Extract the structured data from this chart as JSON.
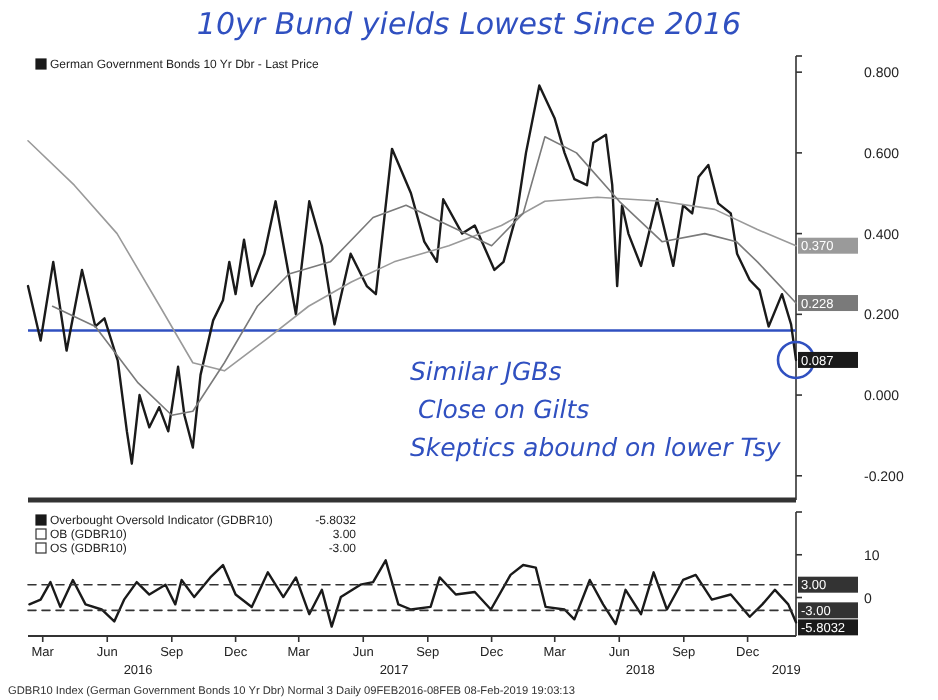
{
  "chart_data": [
    {
      "type": "line",
      "title": "10yr Bund yields Lowest Since 2016",
      "xlim": [
        "2016-02-09",
        "2019-02-08"
      ],
      "ylim": [
        -0.26,
        0.84
      ],
      "yticks": [
        {
          "value": -0.2,
          "label": "-0.200"
        },
        {
          "value": 0,
          "label": "0.000"
        },
        {
          "value": 0.2,
          "label": "0.200"
        },
        {
          "value": 0.4,
          "label": "0.400"
        },
        {
          "value": 0.6,
          "label": "0.600"
        },
        {
          "value": 0.8,
          "label": "0.800"
        }
      ],
      "tick_labels": "y",
      "legend": "top left",
      "series": [
        {
          "name": "German Government Bonds 10 Yr Dbr - Last Price",
          "color": "#1a1a1a",
          "x": [
            "2016-02-09",
            "2016-02-27",
            "2016-03-16",
            "2016-04-04",
            "2016-04-26",
            "2016-05-15",
            "2016-05-28",
            "2016-06-16",
            "2016-06-29",
            "2016-07-06",
            "2016-07-17",
            "2016-07-31",
            "2016-08-14",
            "2016-08-27",
            "2016-09-10",
            "2016-09-19",
            "2016-10-01",
            "2016-10-12",
            "2016-10-30",
            "2016-11-13",
            "2016-11-22",
            "2016-12-01",
            "2016-12-13",
            "2016-12-24",
            "2017-01-11",
            "2017-01-27",
            "2017-02-25",
            "2017-03-16",
            "2017-04-03",
            "2017-04-21",
            "2017-05-14",
            "2017-06-06",
            "2017-06-19",
            "2017-07-12",
            "2017-08-08",
            "2017-08-27",
            "2017-09-14",
            "2017-09-23",
            "2017-10-20",
            "2017-11-07",
            "2017-12-05",
            "2017-12-18",
            "2018-01-06",
            "2018-01-19",
            "2018-02-07",
            "2018-03-01",
            "2018-03-15",
            "2018-03-29",
            "2018-04-16",
            "2018-04-25",
            "2018-05-13",
            "2018-05-22",
            "2018-05-29",
            "2018-06-05",
            "2018-06-14",
            "2018-07-02",
            "2018-07-25",
            "2018-08-17",
            "2018-08-31",
            "2018-09-13",
            "2018-09-22",
            "2018-10-06",
            "2018-10-20",
            "2018-11-07",
            "2018-11-16",
            "2018-12-04",
            "2018-12-18",
            "2018-12-31",
            "2019-01-19",
            "2019-02-01",
            "2019-02-08"
          ],
          "values": [
            0.27,
            0.135,
            0.33,
            0.11,
            0.31,
            0.17,
            0.19,
            0.085,
            -0.09,
            -0.17,
            0.0,
            -0.08,
            -0.03,
            -0.09,
            0.07,
            -0.05,
            -0.13,
            0.05,
            0.185,
            0.235,
            0.33,
            0.25,
            0.385,
            0.27,
            0.35,
            0.48,
            0.2,
            0.48,
            0.37,
            0.175,
            0.35,
            0.27,
            0.25,
            0.61,
            0.5,
            0.38,
            0.33,
            0.485,
            0.4,
            0.42,
            0.31,
            0.33,
            0.45,
            0.6,
            0.767,
            0.685,
            0.6,
            0.535,
            0.52,
            0.625,
            0.645,
            0.52,
            0.27,
            0.47,
            0.4,
            0.32,
            0.485,
            0.32,
            0.47,
            0.45,
            0.54,
            0.57,
            0.475,
            0.45,
            0.35,
            0.285,
            0.26,
            0.17,
            0.25,
            0.175,
            0.087
          ],
          "value_labels": [
            null,
            null,
            null,
            null,
            null,
            null,
            null,
            null,
            null,
            null,
            null,
            null,
            null,
            null,
            null,
            null,
            null,
            null,
            null,
            null,
            null,
            null,
            null,
            null,
            null,
            null,
            null,
            null,
            null,
            null,
            null,
            null,
            null,
            null,
            null,
            null,
            null,
            null,
            null,
            null,
            null,
            null,
            null,
            null,
            null,
            null,
            null,
            null,
            null,
            null,
            null,
            null,
            null,
            null,
            null,
            null,
            null,
            null,
            null,
            null,
            null,
            null,
            null,
            null,
            null,
            null,
            null,
            null,
            null,
            null,
            "0.087"
          ]
        },
        {
          "color": "#9a9a9a",
          "x": [
            "2016-02-09",
            "2016-04-15",
            "2016-06-15",
            "2016-08-15",
            "2016-10-01",
            "2016-11-15",
            "2017-01-15",
            "2017-03-15",
            "2017-05-15",
            "2017-07-15",
            "2017-10-01",
            "2017-12-15",
            "2018-02-15",
            "2018-05-01",
            "2018-08-01",
            "2018-10-15",
            "2018-12-15",
            "2019-02-08"
          ],
          "values": [
            0.63,
            0.52,
            0.4,
            0.22,
            0.08,
            0.06,
            0.14,
            0.22,
            0.28,
            0.33,
            0.37,
            0.42,
            0.48,
            0.49,
            0.48,
            0.46,
            0.41,
            0.37
          ],
          "value_labels": [
            null,
            null,
            null,
            null,
            null,
            null,
            null,
            null,
            null,
            null,
            null,
            null,
            null,
            null,
            null,
            null,
            null,
            "0.370"
          ]
        },
        {
          "color": "#7a7a7a",
          "x": [
            "2016-03-15",
            "2016-05-15",
            "2016-07-15",
            "2016-09-01",
            "2016-10-01",
            "2016-11-15",
            "2017-01-01",
            "2017-02-15",
            "2017-04-15",
            "2017-06-15",
            "2017-08-01",
            "2017-10-01",
            "2017-12-01",
            "2018-01-15",
            "2018-02-15",
            "2018-04-01",
            "2018-06-01",
            "2018-08-01",
            "2018-10-01",
            "2018-11-15",
            "2018-12-15",
            "2019-02-08"
          ],
          "values": [
            0.22,
            0.17,
            0.03,
            -0.05,
            -0.04,
            0.08,
            0.22,
            0.3,
            0.33,
            0.44,
            0.47,
            0.42,
            0.37,
            0.45,
            0.64,
            0.6,
            0.48,
            0.38,
            0.4,
            0.38,
            0.33,
            0.228
          ],
          "value_labels": [
            null,
            null,
            null,
            null,
            null,
            null,
            null,
            null,
            null,
            null,
            null,
            null,
            null,
            null,
            null,
            null,
            null,
            null,
            null,
            null,
            null,
            "0.228"
          ]
        }
      ],
      "ref_lines": [
        {
          "axis": "y",
          "value": 0.16,
          "color": "#3050c0"
        }
      ],
      "annotations": [
        "Similar JGBs",
        "Close on Gilts",
        "Skeptics abound on lower Tsy"
      ]
    },
    {
      "type": "line",
      "xlim": [
        "2016-02-09",
        "2019-02-08"
      ],
      "ylim": [
        -9,
        20
      ],
      "yticks": [
        0,
        10
      ],
      "legend": "top left",
      "xticks": [
        {
          "value": "2016-03-01",
          "label": "Mar"
        },
        {
          "value": "2016-06-01",
          "label": "Jun"
        },
        {
          "value": "2016-09-01",
          "label": "Sep"
        },
        {
          "value": "2016-12-01",
          "label": "Dec"
        },
        {
          "value": "2017-03-01",
          "label": "Mar"
        },
        {
          "value": "2017-06-01",
          "label": "Jun"
        },
        {
          "value": "2017-09-01",
          "label": "Sep"
        },
        {
          "value": "2017-12-01",
          "label": "Dec"
        },
        {
          "value": "2018-03-01",
          "label": "Mar"
        },
        {
          "value": "2018-06-01",
          "label": "Jun"
        },
        {
          "value": "2018-09-01",
          "label": "Sep"
        },
        {
          "value": "2018-12-01",
          "label": "Dec"
        }
      ],
      "x2lim": [
        "2016-02-09",
        "2019-02-08"
      ],
      "x2ticks": [
        {
          "value": "2016-07-15",
          "label": "2016"
        },
        {
          "value": "2017-07-15",
          "label": "2017"
        },
        {
          "value": "2018-07-01",
          "label": "2018"
        },
        {
          "value": "2019-01-25",
          "label": "2019"
        }
      ],
      "series": [
        {
          "name": "Overbought Oversold Indicator (GDBR10)",
          "color": "#1a1a1a",
          "x": [
            "2016-02-11",
            "2016-02-27",
            "2016-03-12",
            "2016-03-26",
            "2016-04-13",
            "2016-05-01",
            "2016-05-24",
            "2016-06-11",
            "2016-06-25",
            "2016-07-13",
            "2016-07-31",
            "2016-08-23",
            "2016-09-06",
            "2016-09-15",
            "2016-10-03",
            "2016-10-26",
            "2016-11-13",
            "2016-12-01",
            "2016-12-24",
            "2017-01-16",
            "2017-02-07",
            "2017-02-25",
            "2017-03-16",
            "2017-04-03",
            "2017-04-17",
            "2017-04-30",
            "2017-05-28",
            "2017-06-15",
            "2017-07-03",
            "2017-07-21",
            "2017-08-08",
            "2017-09-05",
            "2017-09-18",
            "2017-10-11",
            "2017-11-07",
            "2017-11-30",
            "2017-12-28",
            "2018-01-15",
            "2018-02-02",
            "2018-02-16",
            "2018-03-15",
            "2018-03-29",
            "2018-04-20",
            "2018-05-09",
            "2018-05-27",
            "2018-06-10",
            "2018-07-02",
            "2018-07-20",
            "2018-08-08",
            "2018-08-31",
            "2018-09-18",
            "2018-10-11",
            "2018-11-07",
            "2018-12-04",
            "2018-12-22",
            "2019-01-09",
            "2019-01-28",
            "2019-02-08"
          ],
          "values": [
            -1.6,
            -0.5,
            3.6,
            -2.2,
            4.1,
            -1.6,
            -2.8,
            -5.6,
            -0.5,
            3.6,
            0.7,
            3,
            -1.6,
            4.1,
            0.1,
            4.7,
            7.6,
            0.7,
            -2.2,
            5.9,
            0.1,
            4.7,
            -3.9,
            1.8,
            -6.8,
            0.1,
            3,
            3.6,
            8.7,
            -1.6,
            -2.8,
            -2.2,
            4.7,
            0.7,
            1.3,
            -2.8,
            5.3,
            7.6,
            7,
            -2.2,
            -2.8,
            -5.1,
            4.1,
            -1.6,
            -6.2,
            1.8,
            -3.9,
            5.9,
            -2.8,
            4.1,
            5.3,
            -0.5,
            0.7,
            -4.5,
            -1.6,
            1.8,
            -1.6,
            -5.8032
          ],
          "value_labels": [
            null,
            null,
            null,
            null,
            null,
            null,
            null,
            null,
            null,
            null,
            null,
            null,
            null,
            null,
            null,
            null,
            null,
            null,
            null,
            null,
            null,
            null,
            null,
            null,
            null,
            null,
            null,
            null,
            null,
            null,
            null,
            null,
            null,
            null,
            null,
            null,
            null,
            null,
            null,
            null,
            null,
            null,
            null,
            null,
            null,
            null,
            null,
            null,
            null,
            null,
            null,
            null,
            null,
            null,
            null,
            null,
            null,
            "-5.8032"
          ]
        },
        {
          "name": "OB (GDBR10)",
          "color": "#333333",
          "line_style": "dashed",
          "x": [
            "2016-02-09",
            "2019-02-08"
          ],
          "values": [
            3,
            3
          ],
          "value_labels": [
            null,
            "3.00"
          ]
        },
        {
          "name": "OS (GDBR10)",
          "color": "#333333",
          "line_style": "dashed",
          "x": [
            "2016-02-09",
            "2019-02-08"
          ],
          "values": [
            -3,
            -3
          ],
          "value_labels": [
            null,
            "-3.00"
          ]
        }
      ],
      "annotations": [
        "GDBR10 Index (German Government Bonds 10 Yr Dbr) Normal 3  Daily 09FEB2016-08FEB   08-Feb-2019 19:03:13"
      ]
    }
  ]
}
